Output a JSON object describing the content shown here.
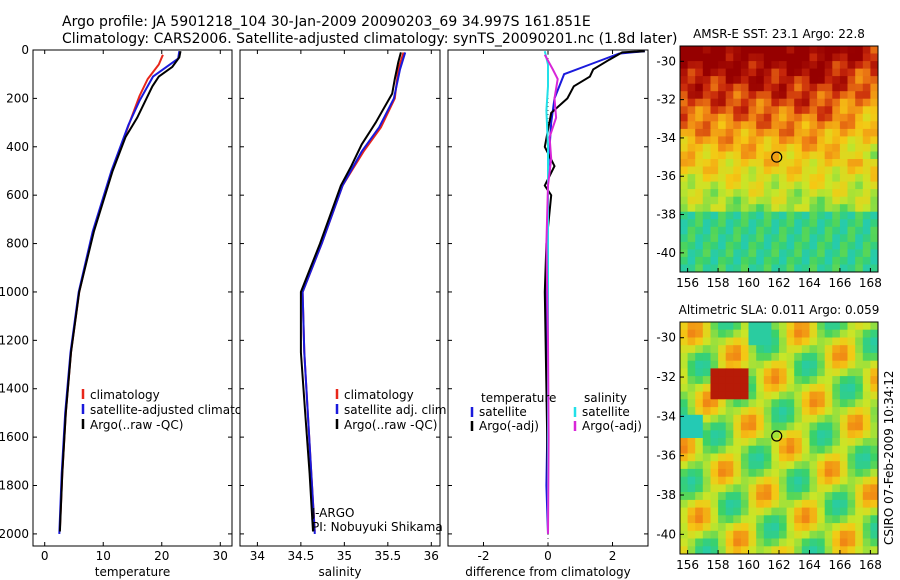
{
  "header": {
    "line1": "Argo profile: JA 5901218_104 30-Jan-2009 20090203_69 34.997S 161.851E",
    "line2": "Climatology: CARS2006. Satellite-adjusted climatology: synTS_20090201.nc (1.8d later)"
  },
  "side_label": "CSIRO 07-Feb-2009 10:34:12",
  "colors": {
    "climatology": "#e8261a",
    "satellite": "#1a1adc",
    "argo": "#000000",
    "sal_satellite": "#22e0e8",
    "sal_argo": "#d826d8"
  },
  "chart_data": [
    {
      "type": "line",
      "name": "temperature-profile",
      "xlabel": "temperature",
      "xlim": [
        -2,
        32
      ],
      "ylim": [
        0,
        2050
      ],
      "yticks": [
        0,
        200,
        400,
        600,
        800,
        1000,
        1200,
        1400,
        1600,
        1800,
        2000
      ],
      "xticks": [
        0,
        10,
        20,
        30
      ],
      "legend": [
        "climatology",
        "satellite-adjusted climatology",
        "Argo(..raw -QC)"
      ],
      "series": [
        {
          "name": "climatology",
          "points": [
            [
              20.2,
              20
            ],
            [
              19.5,
              60
            ],
            [
              17.6,
              120
            ],
            [
              16.2,
              190
            ],
            [
              14.5,
              300
            ],
            [
              11.5,
              500
            ],
            [
              8.3,
              750
            ],
            [
              5.9,
              1000
            ],
            [
              4.5,
              1250
            ],
            [
              3.6,
              1500
            ],
            [
              3.0,
              1750
            ],
            [
              2.6,
              1980
            ]
          ]
        },
        {
          "name": "satellite-adjusted climatology",
          "points": [
            [
              23.0,
              5
            ],
            [
              22.8,
              35
            ],
            [
              18.5,
              110
            ],
            [
              16.2,
              210
            ],
            [
              14.3,
              310
            ],
            [
              11.4,
              500
            ],
            [
              8.2,
              750
            ],
            [
              5.8,
              1000
            ],
            [
              4.4,
              1250
            ],
            [
              3.5,
              1500
            ],
            [
              2.9,
              1750
            ],
            [
              2.5,
              2000
            ]
          ]
        },
        {
          "name": "Argo(..raw -QC)",
          "points": [
            [
              23.2,
              5
            ],
            [
              23.0,
              30
            ],
            [
              21.8,
              70
            ],
            [
              19.5,
              110
            ],
            [
              18.4,
              150
            ],
            [
              17.4,
              200
            ],
            [
              15.8,
              280
            ],
            [
              13.8,
              360
            ],
            [
              11.6,
              500
            ],
            [
              8.4,
              750
            ],
            [
              5.9,
              1000
            ],
            [
              4.5,
              1250
            ],
            [
              3.6,
              1500
            ],
            [
              3.0,
              1750
            ],
            [
              2.6,
              1990
            ]
          ]
        }
      ]
    },
    {
      "type": "line",
      "name": "salinity-profile",
      "xlabel": "salinity",
      "xlim": [
        33.8,
        36.1
      ],
      "ylim": [
        0,
        2050
      ],
      "xticks": [
        34,
        34.5,
        35,
        35.5,
        36
      ],
      "legend": [
        "climatology",
        "satellite adj. clim.",
        "Argo(..raw -QC)"
      ],
      "annotation": [
        "J-ARGO",
        "PI: Nobuyuki Shikama"
      ],
      "series": [
        {
          "name": "climatology",
          "points": [
            [
              35.68,
              10
            ],
            [
              35.62,
              80
            ],
            [
              35.58,
              200
            ],
            [
              35.42,
              320
            ],
            [
              35.22,
              420
            ],
            [
              34.98,
              560
            ],
            [
              34.74,
              800
            ],
            [
              34.52,
              1000
            ],
            [
              34.54,
              1250
            ],
            [
              34.58,
              1500
            ],
            [
              34.62,
              1750
            ],
            [
              34.66,
              1990
            ]
          ]
        },
        {
          "name": "satellite adj. clim.",
          "points": [
            [
              35.7,
              10
            ],
            [
              35.64,
              80
            ],
            [
              35.57,
              200
            ],
            [
              35.4,
              320
            ],
            [
              35.2,
              420
            ],
            [
              34.98,
              560
            ],
            [
              34.74,
              800
            ],
            [
              34.52,
              1000
            ],
            [
              34.54,
              1250
            ],
            [
              34.58,
              1500
            ],
            [
              34.62,
              1750
            ],
            [
              34.66,
              2000
            ]
          ]
        },
        {
          "name": "Argo(..raw -QC)",
          "points": [
            [
              35.65,
              10
            ],
            [
              35.62,
              50
            ],
            [
              35.58,
              120
            ],
            [
              35.55,
              180
            ],
            [
              35.36,
              300
            ],
            [
              35.2,
              390
            ],
            [
              35.08,
              480
            ],
            [
              34.96,
              560
            ],
            [
              34.72,
              800
            ],
            [
              34.5,
              1000
            ],
            [
              34.5,
              1250
            ],
            [
              34.55,
              1500
            ],
            [
              34.6,
              1750
            ],
            [
              34.64,
              1990
            ]
          ]
        }
      ]
    },
    {
      "type": "line",
      "name": "difference-from-climatology",
      "xlabel": "difference from climatology",
      "xlim": [
        -3.1,
        3.1
      ],
      "ylim": [
        0,
        2050
      ],
      "xticks": [
        -2,
        0,
        2
      ],
      "legend": [
        "temperature",
        "satellite",
        "Argo(-adj)",
        "salinity",
        "satellite",
        "Argo(-adj)"
      ],
      "series": [
        {
          "name": "temperature satellite",
          "points": [
            [
              3.0,
              5
            ],
            [
              2.2,
              15
            ],
            [
              1.3,
              60
            ],
            [
              0.5,
              100
            ],
            [
              0.2,
              200
            ],
            [
              0.1,
              300
            ],
            [
              0.0,
              500
            ],
            [
              0.0,
              800
            ],
            [
              -0.05,
              1000
            ],
            [
              0.0,
              1400
            ],
            [
              -0.05,
              1800
            ],
            [
              0.0,
              2000
            ]
          ]
        },
        {
          "name": "temperature Argo(-adj)",
          "points": [
            [
              3.0,
              5
            ],
            [
              2.3,
              10
            ],
            [
              1.9,
              40
            ],
            [
              1.4,
              80
            ],
            [
              1.3,
              110
            ],
            [
              0.8,
              150
            ],
            [
              0.6,
              200
            ],
            [
              0.1,
              260
            ],
            [
              -0.1,
              400
            ],
            [
              0.2,
              480
            ],
            [
              -0.1,
              560
            ],
            [
              0.1,
              600
            ],
            [
              -0.05,
              800
            ],
            [
              -0.1,
              1000
            ],
            [
              -0.05,
              1400
            ],
            [
              0.0,
              1800
            ],
            [
              0.0,
              2000
            ]
          ]
        },
        {
          "name": "salinity satellite",
          "points": [
            [
              -0.1,
              5
            ],
            [
              0.0,
              60
            ],
            [
              0.0,
              150
            ],
            [
              -0.05,
              250
            ],
            [
              0.0,
              400
            ],
            [
              0.0,
              800
            ],
            [
              0.0,
              1200
            ],
            [
              0.0,
              1600
            ],
            [
              0.0,
              2000
            ]
          ]
        },
        {
          "name": "salinity Argo(-adj)",
          "points": [
            [
              -0.1,
              20
            ],
            [
              0.15,
              80
            ],
            [
              0.3,
              120
            ],
            [
              0.2,
              200
            ],
            [
              0.25,
              280
            ],
            [
              0.05,
              360
            ],
            [
              0.1,
              450
            ],
            [
              0.0,
              560
            ],
            [
              -0.05,
              800
            ],
            [
              0.0,
              1200
            ],
            [
              0.02,
              1600
            ],
            [
              0.0,
              2000
            ]
          ]
        }
      ]
    },
    {
      "type": "heatmap",
      "name": "amsr-e-sst-map",
      "title": "AMSR-E SST: 23.1 Argo: 22.8",
      "xlim": [
        155.5,
        168.5
      ],
      "ylim": [
        -41,
        -29.2
      ],
      "xticks": [
        156,
        158,
        160,
        162,
        164,
        166,
        168
      ],
      "yticks": [
        -30,
        -32,
        -34,
        -36,
        -38,
        -40
      ],
      "marker": [
        161.85,
        -35.0
      ]
    },
    {
      "type": "heatmap",
      "name": "altimetric-sla-map",
      "title": "Altimetric SLA: 0.011 Argo: 0.059",
      "xlim": [
        155.5,
        168.5
      ],
      "ylim": [
        -41,
        -29.2
      ],
      "xticks": [
        156,
        158,
        160,
        162,
        164,
        166,
        168
      ],
      "yticks": [
        -30,
        -32,
        -34,
        -36,
        -38,
        -40
      ],
      "marker": [
        161.85,
        -35.0
      ]
    }
  ]
}
